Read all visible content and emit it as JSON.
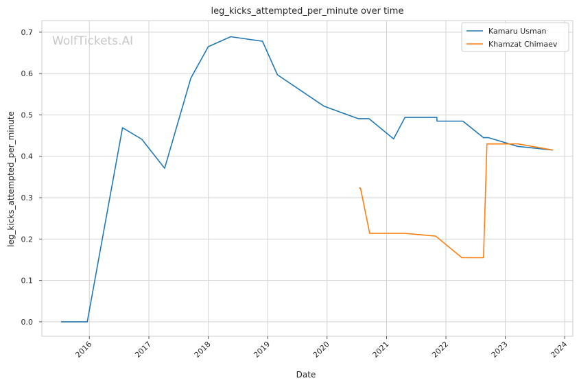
{
  "chart_data": {
    "type": "line",
    "title": "leg_kicks_attempted_per_minute over time",
    "xlabel": "Date",
    "ylabel": "leg_kicks_attempted_per_minute",
    "watermark": "WolfTickets.AI",
    "x_type": "date",
    "xlim": [
      "2015-03-15",
      "2024-02-20"
    ],
    "ylim": [
      -0.035,
      0.728
    ],
    "x_ticks": [
      {
        "date": "2016-01-01",
        "label": "2016"
      },
      {
        "date": "2017-01-01",
        "label": "2017"
      },
      {
        "date": "2018-01-01",
        "label": "2018"
      },
      {
        "date": "2019-01-01",
        "label": "2019"
      },
      {
        "date": "2020-01-01",
        "label": "2020"
      },
      {
        "date": "2021-01-01",
        "label": "2021"
      },
      {
        "date": "2022-01-01",
        "label": "2022"
      },
      {
        "date": "2023-01-01",
        "label": "2023"
      },
      {
        "date": "2024-01-01",
        "label": "2024"
      }
    ],
    "y_ticks": [
      {
        "value": 0.0,
        "label": "0.0"
      },
      {
        "value": 0.1,
        "label": "0.1"
      },
      {
        "value": 0.2,
        "label": "0.2"
      },
      {
        "value": 0.3,
        "label": "0.3"
      },
      {
        "value": 0.4,
        "label": "0.4"
      },
      {
        "value": 0.5,
        "label": "0.5"
      },
      {
        "value": 0.6,
        "label": "0.6"
      },
      {
        "value": 0.7,
        "label": "0.7"
      }
    ],
    "grid": true,
    "legend_position": "top-right",
    "series": [
      {
        "name": "Kamaru Usman",
        "color": "#1f77b4",
        "points": [
          {
            "x": "2015-07-11",
            "y": 0.0
          },
          {
            "x": "2015-12-19",
            "y": 0.0
          },
          {
            "x": "2016-07-23",
            "y": 0.469
          },
          {
            "x": "2016-11-19",
            "y": 0.441
          },
          {
            "x": "2017-04-08",
            "y": 0.371
          },
          {
            "x": "2017-09-16",
            "y": 0.589
          },
          {
            "x": "2018-01-01",
            "y": 0.665
          },
          {
            "x": "2018-05-19",
            "y": 0.689
          },
          {
            "x": "2018-11-30",
            "y": 0.678
          },
          {
            "x": "2019-03-02",
            "y": 0.597
          },
          {
            "x": "2019-12-14",
            "y": 0.521
          },
          {
            "x": "2020-07-11",
            "y": 0.491
          },
          {
            "x": "2020-09-15",
            "y": 0.491
          },
          {
            "x": "2021-02-13",
            "y": 0.442
          },
          {
            "x": "2021-04-24",
            "y": 0.494
          },
          {
            "x": "2021-11-06",
            "y": 0.494
          },
          {
            "x": "2021-11-07",
            "y": 0.485
          },
          {
            "x": "2022-04-15",
            "y": 0.485
          },
          {
            "x": "2022-08-20",
            "y": 0.445
          },
          {
            "x": "2022-09-20",
            "y": 0.445
          },
          {
            "x": "2023-03-18",
            "y": 0.424
          },
          {
            "x": "2023-10-21",
            "y": 0.415
          }
        ]
      },
      {
        "name": "Khamzat Chimaev",
        "color": "#ff7f0e",
        "points": [
          {
            "x": "2020-07-15",
            "y": 0.323
          },
          {
            "x": "2020-07-25",
            "y": 0.323
          },
          {
            "x": "2020-09-19",
            "y": 0.214
          },
          {
            "x": "2021-04-20",
            "y": 0.214
          },
          {
            "x": "2021-10-30",
            "y": 0.207
          },
          {
            "x": "2022-04-09",
            "y": 0.155
          },
          {
            "x": "2022-08-20",
            "y": 0.155
          },
          {
            "x": "2022-09-10",
            "y": 0.43
          },
          {
            "x": "2023-03-20",
            "y": 0.43
          },
          {
            "x": "2023-10-21",
            "y": 0.415
          }
        ]
      }
    ]
  }
}
